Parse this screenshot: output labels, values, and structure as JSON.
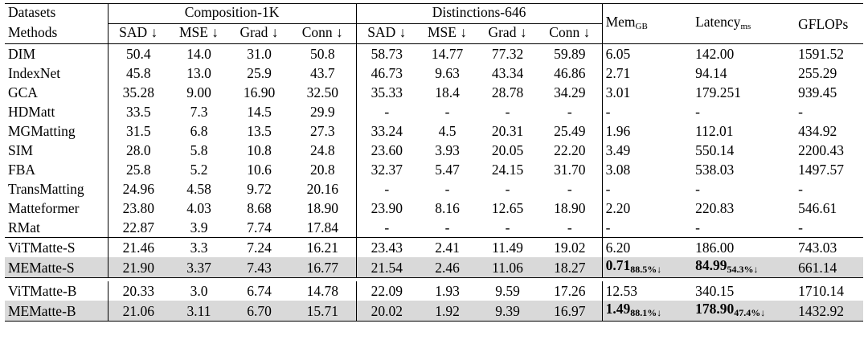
{
  "header": {
    "row1_label": "Datasets",
    "row2_label": "Methods",
    "group_comp": "Composition-1K",
    "group_dist": "Distinctions-646",
    "metrics": [
      "SAD ↓",
      "MSE ↓",
      "Grad ↓",
      "Conn ↓"
    ],
    "mem": "Mem",
    "mem_unit": "GB",
    "latency": "Latency",
    "latency_unit": "ms",
    "gflops": "GFLOPs"
  },
  "rows_main": [
    [
      "DIM",
      "50.4",
      "14.0",
      "31.0",
      "50.8",
      "58.73",
      "14.77",
      "77.32",
      "59.89",
      "6.05",
      "142.00",
      "1591.52"
    ],
    [
      "IndexNet",
      "45.8",
      "13.0",
      "25.9",
      "43.7",
      "46.73",
      "9.63",
      "43.34",
      "46.86",
      "2.71",
      "94.14",
      "255.29"
    ],
    [
      "GCA",
      "35.28",
      "9.00",
      "16.90",
      "32.50",
      "35.33",
      "18.4",
      "28.78",
      "34.29",
      "3.01",
      "179.251",
      "939.45"
    ],
    [
      "HDMatt",
      "33.5",
      "7.3",
      "14.5",
      "29.9",
      "-",
      "-",
      "-",
      "-",
      "-",
      "-",
      "-"
    ],
    [
      "MGMatting",
      "31.5",
      "6.8",
      "13.5",
      "27.3",
      "33.24",
      "4.5",
      "20.31",
      "25.49",
      "1.96",
      "112.01",
      "434.92"
    ],
    [
      "SIM",
      "28.0",
      "5.8",
      "10.8",
      "24.8",
      "23.60",
      "3.93",
      "20.05",
      "22.20",
      "3.49",
      "550.14",
      "2200.43"
    ],
    [
      "FBA",
      "25.8",
      "5.2",
      "10.6",
      "20.8",
      "32.37",
      "5.47",
      "24.15",
      "31.70",
      "3.08",
      "538.03",
      "1497.57"
    ],
    [
      "TransMatting",
      "24.96",
      "4.58",
      "9.72",
      "20.16",
      "-",
      "-",
      "-",
      "-",
      "-",
      "-",
      "-"
    ],
    [
      "Matteformer",
      "23.80",
      "4.03",
      "8.68",
      "18.90",
      "23.90",
      "8.16",
      "12.65",
      "18.90",
      "2.20",
      "220.83",
      "546.61"
    ],
    [
      "RMat",
      "22.87",
      "3.9",
      "7.74",
      "17.84",
      "-",
      "-",
      "-",
      "-",
      "-",
      "-",
      "-"
    ]
  ],
  "small": {
    "vit": [
      "ViTMatte-S",
      "21.46",
      "3.3",
      "7.24",
      "16.21",
      "23.43",
      "2.41",
      "11.49",
      "19.02",
      "6.20",
      "186.00",
      "743.03"
    ],
    "me": [
      "MEMatte-S",
      "21.90",
      "3.37",
      "7.43",
      "16.77",
      "21.54",
      "2.46",
      "11.06",
      "18.27"
    ],
    "me_mem": "0.71",
    "me_mem_red": "88.5%↓",
    "me_lat": "84.99",
    "me_lat_red": "54.3%↓",
    "me_gflops": "661.14"
  },
  "base": {
    "vit": [
      "ViTMatte-B",
      "20.33",
      "3.0",
      "6.74",
      "14.78",
      "22.09",
      "1.93",
      "9.59",
      "17.26",
      "12.53",
      "340.15",
      "1710.14"
    ],
    "me": [
      "MEMatte-B",
      "21.06",
      "3.11",
      "6.70",
      "15.71",
      "20.02",
      "1.92",
      "9.39",
      "16.97"
    ],
    "me_mem": "1.49",
    "me_mem_red": "88.1%↓",
    "me_lat": "178.90",
    "me_lat_red": "47.4%↓",
    "me_gflops": "1432.92"
  }
}
